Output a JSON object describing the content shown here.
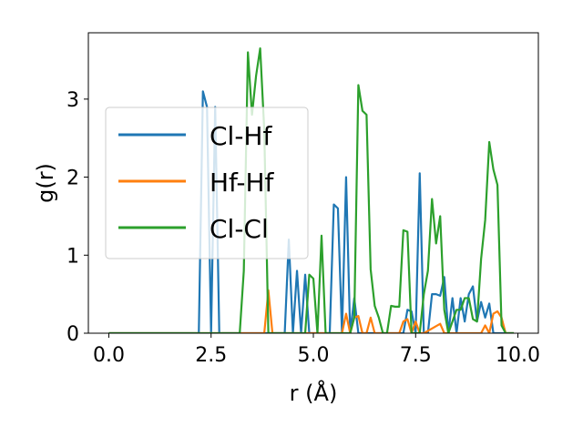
{
  "chart_data": {
    "type": "line",
    "title": "",
    "xlabel": "r (Å)",
    "ylabel": "g(r)",
    "xlim": [
      -0.5,
      10.5
    ],
    "ylim": [
      0,
      3.85
    ],
    "xticks": [
      0.0,
      2.5,
      5.0,
      7.5,
      10.0
    ],
    "xtick_labels": [
      "0.0",
      "2.5",
      "5.0",
      "7.5",
      "10.0"
    ],
    "yticks": [
      0,
      1,
      2,
      3
    ],
    "ytick_labels": [
      "0",
      "1",
      "2",
      "3"
    ],
    "grid": false,
    "legend_position": "center-left",
    "series": [
      {
        "name": "Cl-Hf",
        "color": "#1f77b4",
        "x": [
          0.0,
          2.2,
          2.3,
          2.4,
          2.5,
          2.6,
          2.7,
          2.8,
          2.9,
          3.0,
          3.1,
          3.2,
          3.3,
          3.4,
          3.5,
          3.6,
          3.7,
          3.8,
          3.9,
          4.0,
          4.1,
          4.2,
          4.3,
          4.4,
          4.5,
          4.6,
          4.7,
          4.8,
          4.9,
          5.0,
          5.1,
          5.2,
          5.3,
          5.4,
          5.5,
          5.6,
          5.7,
          5.8,
          5.9,
          6.0,
          6.1,
          6.2,
          6.3,
          6.4,
          6.5,
          6.6,
          6.7,
          6.8,
          6.9,
          7.0,
          7.1,
          7.2,
          7.3,
          7.4,
          7.5,
          7.6,
          7.7,
          7.8,
          7.9,
          8.0,
          8.1,
          8.2,
          8.3,
          8.4,
          8.5,
          8.6,
          8.7,
          8.8,
          8.9,
          9.0,
          9.1,
          9.2,
          9.3,
          9.4,
          9.5,
          9.6,
          9.7,
          9.8,
          9.9
        ],
        "y": [
          0,
          0,
          3.1,
          2.9,
          0,
          2.9,
          0,
          0,
          0,
          0,
          0,
          0,
          0,
          0,
          0,
          0,
          0,
          0,
          0,
          0,
          0,
          0,
          0,
          1.2,
          0,
          0.8,
          0,
          0.75,
          0,
          0,
          0,
          0,
          0,
          0,
          1.65,
          1.6,
          0,
          2.0,
          0,
          0.45,
          0,
          0,
          0,
          0,
          0,
          0,
          0,
          0,
          0,
          0,
          0,
          0,
          0.3,
          0.28,
          0,
          2.05,
          0,
          0,
          0.5,
          0.5,
          0.48,
          0.72,
          0,
          0.45,
          0,
          0.45,
          0.15,
          0.5,
          0.6,
          0.15,
          0.4,
          0.2,
          0.38,
          0,
          0,
          0,
          0,
          0,
          0
        ],
        "legend_label": "Cl-Hf"
      },
      {
        "name": "Hf-Hf",
        "color": "#ff7f0e",
        "x": [
          0.0,
          3.7,
          3.8,
          3.9,
          4.0,
          4.1,
          5.6,
          5.7,
          5.8,
          5.9,
          6.0,
          6.1,
          6.2,
          6.3,
          6.4,
          6.5,
          6.6,
          7.1,
          7.2,
          7.3,
          7.4,
          7.5,
          7.6,
          7.7,
          8.1,
          8.2,
          8.3,
          9.1,
          9.2,
          9.3,
          9.4,
          9.5,
          9.6,
          9.7,
          9.9
        ],
        "y": [
          0,
          0,
          0,
          0.55,
          0,
          0,
          0,
          0,
          0.25,
          0,
          0.2,
          0.22,
          0,
          0,
          0.2,
          0,
          0,
          0,
          0.15,
          0.18,
          0,
          0.15,
          0,
          0,
          0.12,
          0,
          0,
          0,
          0.1,
          0,
          0.25,
          0.28,
          0.2,
          0,
          0
        ],
        "legend_label": "Hf-Hf"
      },
      {
        "name": "Cl-Cl",
        "color": "#2ca02c",
        "x": [
          0.0,
          3.2,
          3.3,
          3.4,
          3.5,
          3.6,
          3.7,
          3.8,
          3.9,
          4.0,
          4.8,
          4.9,
          5.0,
          5.1,
          5.2,
          5.3,
          5.4,
          5.5,
          5.6,
          5.7,
          5.8,
          5.9,
          6.0,
          6.1,
          6.2,
          6.3,
          6.4,
          6.5,
          6.6,
          6.7,
          6.8,
          6.9,
          7.0,
          7.1,
          7.2,
          7.3,
          7.4,
          7.5,
          7.6,
          7.7,
          7.8,
          7.9,
          8.0,
          8.1,
          8.2,
          8.3,
          8.4,
          8.5,
          8.6,
          8.7,
          8.8,
          8.9,
          9.0,
          9.1,
          9.2,
          9.3,
          9.4,
          9.5,
          9.6,
          9.7,
          9.8,
          9.9
        ],
        "y": [
          0,
          0,
          0.8,
          3.6,
          2.8,
          3.3,
          3.65,
          2.6,
          0,
          0,
          0,
          0.75,
          0.7,
          0,
          1.25,
          0,
          0,
          0,
          0,
          0,
          0,
          0,
          0.2,
          3.18,
          2.85,
          2.8,
          0.82,
          0.35,
          0.2,
          0,
          0,
          0.35,
          0.34,
          0.34,
          1.32,
          1.3,
          0,
          0,
          0,
          0.5,
          0.8,
          1.72,
          1.15,
          1.5,
          0.3,
          0,
          0.15,
          0.3,
          0.3,
          0.45,
          0.45,
          0.18,
          0.15,
          0.95,
          1.45,
          2.45,
          2.1,
          1.9,
          0.1,
          0,
          0,
          0
        ],
        "legend_label": "Cl-Cl"
      }
    ]
  }
}
